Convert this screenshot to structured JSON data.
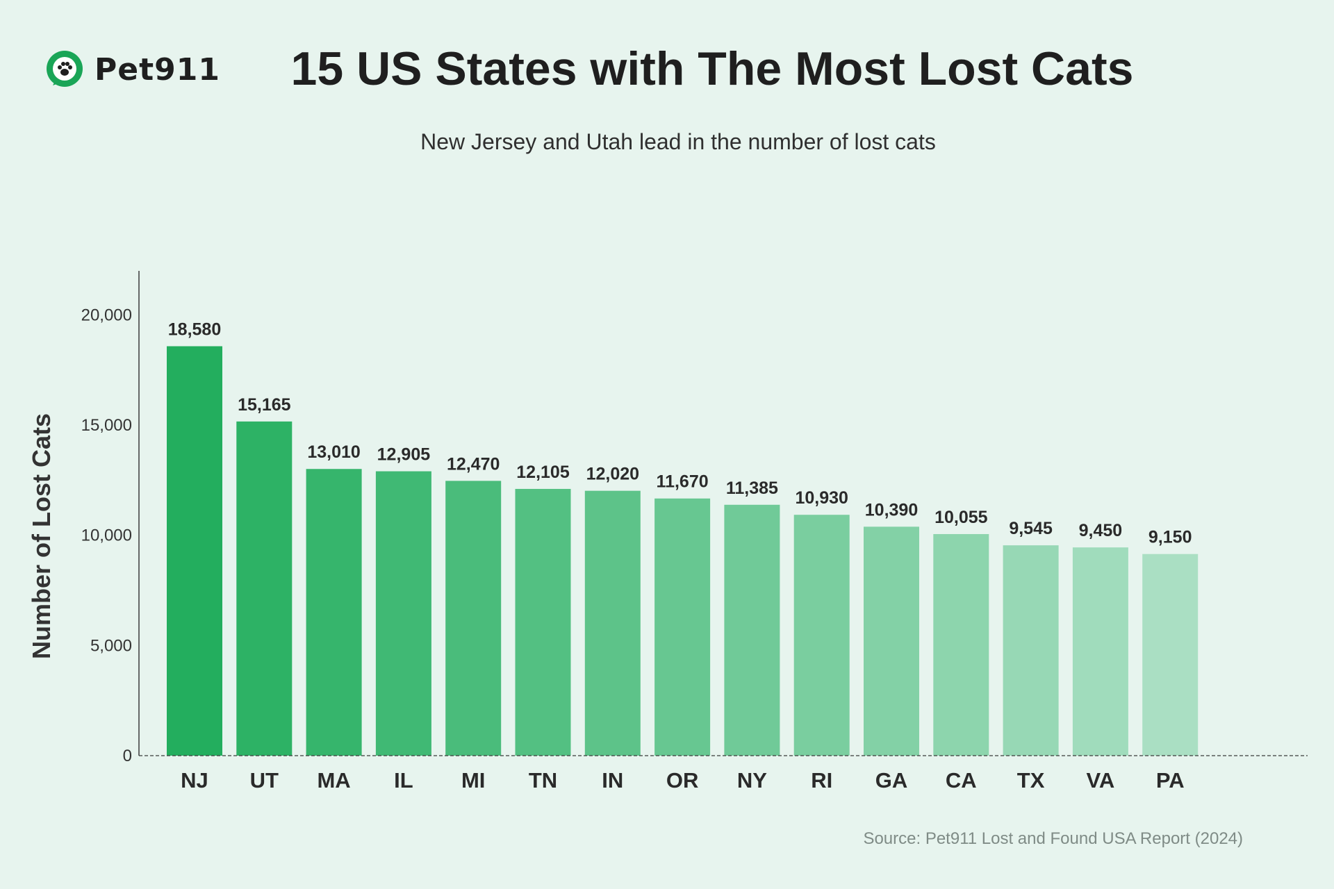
{
  "brand": {
    "name": "Pet911",
    "color": "#1aa557"
  },
  "header": {
    "title": "15 US States with The Most Lost Cats",
    "subtitle": "New Jersey and Utah lead in the number of lost cats"
  },
  "footer": {
    "source": "Source: Pet911 Lost and Found USA Report (2024)"
  },
  "chart_data": {
    "type": "bar",
    "title": "15 US States with The Most Lost Cats",
    "subtitle": "New Jersey and Utah lead in the number of lost cats",
    "xlabel": "",
    "ylabel": "Number of Lost Cats",
    "categories": [
      "NJ",
      "UT",
      "MA",
      "IL",
      "MI",
      "TN",
      "IN",
      "OR",
      "NY",
      "RI",
      "GA",
      "CA",
      "TX",
      "VA",
      "PA"
    ],
    "values": [
      18580,
      15165,
      13010,
      12905,
      12470,
      12105,
      12020,
      11670,
      11385,
      10930,
      10390,
      10055,
      9545,
      9450,
      9150
    ],
    "value_labels": [
      "18,580",
      "15,165",
      "13,010",
      "12,905",
      "12,470",
      "12,105",
      "12,020",
      "11,670",
      "11,385",
      "10,930",
      "10,390",
      "10,055",
      "9,545",
      "9,450",
      "9,150"
    ],
    "ylim": [
      0,
      22000
    ],
    "yticks": [
      0,
      5000,
      10000,
      15000,
      20000
    ],
    "ytick_labels": [
      "0",
      "5,000",
      "10,000",
      "15,000",
      "20,000"
    ],
    "grid": false,
    "legend": "none",
    "color_start": "#23ae5e",
    "color_end": "#aadfc3",
    "axis_color": "#3a3a3a",
    "source": "Source: Pet911 Lost and Found USA Report (2024)"
  }
}
